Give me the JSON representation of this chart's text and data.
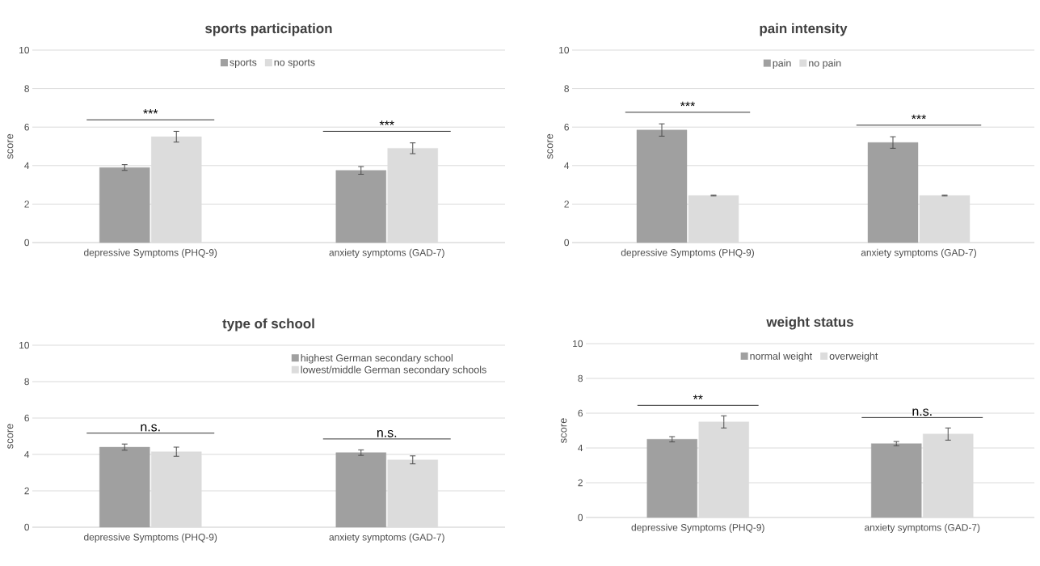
{
  "chart_data": [
    {
      "type": "bar",
      "title": "sports participation",
      "ylabel": "score",
      "categories": [
        "depressive Symptoms (PHQ-9)",
        "anxiety symptoms (GAD-7)"
      ],
      "series": [
        {
          "name": "sports",
          "color": "#a0a0a0",
          "values": [
            3.9,
            3.75
          ],
          "errors": [
            0.15,
            0.2
          ]
        },
        {
          "name": "no sports",
          "color": "#dcdcdc",
          "values": [
            5.5,
            4.9
          ],
          "errors": [
            0.28,
            0.28
          ]
        }
      ],
      "ylim": [
        0,
        10
      ],
      "yticks": [
        0,
        2,
        4,
        6,
        8,
        10
      ],
      "grid": "y",
      "legend": "top",
      "annotations": [
        "***",
        "***"
      ]
    },
    {
      "type": "bar",
      "title": "pain intensity",
      "ylabel": "score",
      "categories": [
        "depressive Symptoms (PHQ-9)",
        "anxiety symptoms (GAD-7)"
      ],
      "series": [
        {
          "name": "pain",
          "color": "#a0a0a0",
          "values": [
            5.85,
            5.2
          ],
          "errors": [
            0.32,
            0.3
          ]
        },
        {
          "name": "no pain",
          "color": "#dcdcdc",
          "values": [
            2.45,
            2.45
          ],
          "errors": [
            0.02,
            0.02
          ]
        }
      ],
      "ylim": [
        0,
        10
      ],
      "yticks": [
        0,
        2,
        4,
        6,
        8,
        10
      ],
      "grid": "y",
      "legend": "top",
      "annotations": [
        "***",
        "***"
      ]
    },
    {
      "type": "bar",
      "title": "type of school",
      "ylabel": "score",
      "categories": [
        "depressive Symptoms (PHQ-9)",
        "anxiety symptoms (GAD-7)"
      ],
      "series": [
        {
          "name": "highest German secondary school",
          "color": "#a0a0a0",
          "values": [
            4.4,
            4.1
          ],
          "errors": [
            0.17,
            0.15
          ]
        },
        {
          "name": "lowest/middle German secondary schools",
          "color": "#dcdcdc",
          "values": [
            4.15,
            3.7
          ],
          "errors": [
            0.25,
            0.22
          ]
        }
      ],
      "ylim": [
        0,
        10
      ],
      "yticks": [
        0,
        2,
        4,
        6,
        8,
        10
      ],
      "grid": "y",
      "legend": "top right",
      "annotations": [
        "n.s.",
        "n.s."
      ]
    },
    {
      "type": "bar",
      "title": "weight status",
      "ylabel": "score",
      "categories": [
        "depressive Symptoms (PHQ-9)",
        "anxiety symptoms (GAD-7)"
      ],
      "series": [
        {
          "name": "normal weight",
          "color": "#a0a0a0",
          "values": [
            4.5,
            4.25
          ],
          "errors": [
            0.15,
            0.12
          ]
        },
        {
          "name": "overweight",
          "color": "#dcdcdc",
          "values": [
            5.5,
            4.8
          ],
          "errors": [
            0.35,
            0.35
          ]
        }
      ],
      "ylim": [
        0,
        10
      ],
      "yticks": [
        0,
        2,
        4,
        6,
        8,
        10
      ],
      "grid": "y",
      "legend": "top",
      "annotations": [
        "**",
        "n.s."
      ]
    }
  ]
}
